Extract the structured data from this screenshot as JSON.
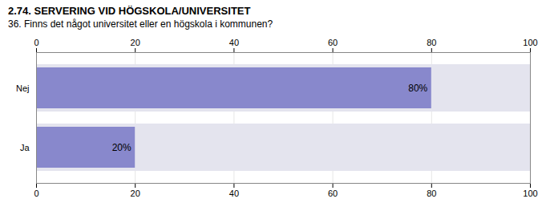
{
  "chart_data": {
    "type": "bar",
    "title": "2.74. SERVERING VID HÖGSKOLA/UNIVERSITET",
    "subtitle": "36. Finns det något universitet eller en högskola i kommunen?",
    "orientation": "horizontal",
    "categories": [
      "Nej",
      "Ja"
    ],
    "values": [
      80,
      20
    ],
    "value_labels": [
      "80%",
      "20%"
    ],
    "data_labels": true,
    "color": "#8888cc",
    "xlim": [
      0,
      100
    ],
    "xticks": [
      0,
      20,
      40,
      60,
      80,
      100
    ],
    "grid": true
  }
}
